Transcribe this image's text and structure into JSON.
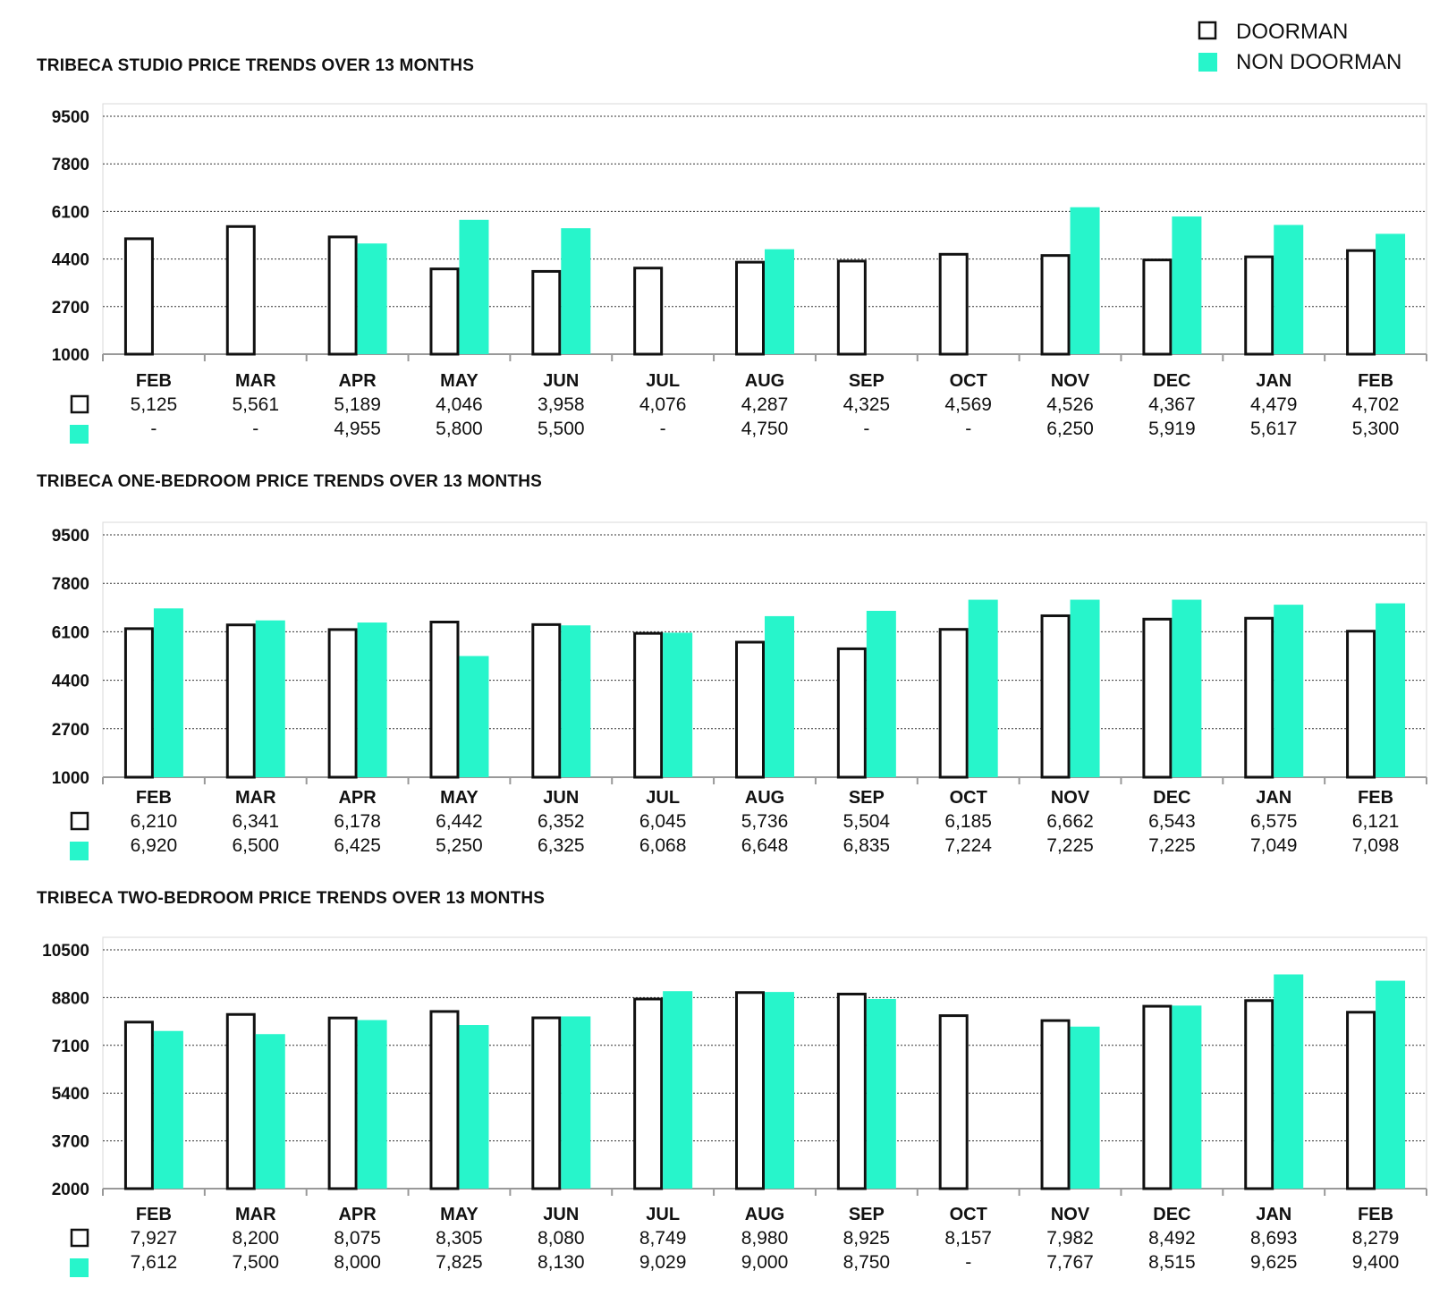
{
  "colors": {
    "doorman_stroke": "#111111",
    "non_doorman_fill": "#27f5cb"
  },
  "legend": {
    "doorman": "DOORMAN",
    "non_doorman": "NON DOORMAN"
  },
  "chart_data": [
    {
      "type": "bar",
      "title": "TRIBECA STUDIO PRICE TRENDS OVER 13 MONTHS",
      "categories": [
        "FEB",
        "MAR",
        "APR",
        "MAY",
        "JUN",
        "JUL",
        "AUG",
        "SEP",
        "OCT",
        "NOV",
        "DEC",
        "JAN",
        "FEB"
      ],
      "yticks": [
        "9500",
        "7800",
        "6100",
        "4400",
        "2700",
        "1000"
      ],
      "ylim": [
        1000,
        9500
      ],
      "series": [
        {
          "name": "DOORMAN",
          "values": [
            5125,
            5561,
            5189,
            4046,
            3958,
            4076,
            4287,
            4325,
            4569,
            4526,
            4367,
            4479,
            4702
          ],
          "labels": [
            "5,125",
            "5,561",
            "5,189",
            "4,046",
            "3,958",
            "4,076",
            "4,287",
            "4,325",
            "4,569",
            "4,526",
            "4,367",
            "4,479",
            "4,702"
          ]
        },
        {
          "name": "NON DOORMAN",
          "values": [
            null,
            null,
            4955,
            5800,
            5500,
            null,
            4750,
            null,
            null,
            6250,
            5919,
            5617,
            5300
          ],
          "labels": [
            "-",
            "-",
            "4,955",
            "5,800",
            "5,500",
            "-",
            "4,750",
            "-",
            "-",
            "6,250",
            "5,919",
            "5,617",
            "5,300"
          ]
        }
      ]
    },
    {
      "type": "bar",
      "title": "TRIBECA ONE-BEDROOM PRICE TRENDS OVER 13 MONTHS",
      "categories": [
        "FEB",
        "MAR",
        "APR",
        "MAY",
        "JUN",
        "JUL",
        "AUG",
        "SEP",
        "OCT",
        "NOV",
        "DEC",
        "JAN",
        "FEB"
      ],
      "yticks": [
        "9500",
        "7800",
        "6100",
        "4400",
        "2700",
        "1000"
      ],
      "ylim": [
        1000,
        9500
      ],
      "series": [
        {
          "name": "DOORMAN",
          "values": [
            6210,
            6341,
            6178,
            6442,
            6352,
            6045,
            5736,
            5504,
            6185,
            6662,
            6543,
            6575,
            6121
          ],
          "labels": [
            "6,210",
            "6,341",
            "6,178",
            "6,442",
            "6,352",
            "6,045",
            "5,736",
            "5,504",
            "6,185",
            "6,662",
            "6,543",
            "6,575",
            "6,121"
          ]
        },
        {
          "name": "NON DOORMAN",
          "values": [
            6920,
            6500,
            6425,
            5250,
            6325,
            6068,
            6648,
            6835,
            7224,
            7225,
            7225,
            7049,
            7098
          ],
          "labels": [
            "6,920",
            "6,500",
            "6,425",
            "5,250",
            "6,325",
            "6,068",
            "6,648",
            "6,835",
            "7,224",
            "7,225",
            "7,225",
            "7,049",
            "7,098"
          ]
        }
      ]
    },
    {
      "type": "bar",
      "title": "TRIBECA TWO-BEDROOM PRICE TRENDS OVER 13 MONTHS",
      "categories": [
        "FEB",
        "MAR",
        "APR",
        "MAY",
        "JUN",
        "JUL",
        "AUG",
        "SEP",
        "OCT",
        "NOV",
        "DEC",
        "JAN",
        "FEB"
      ],
      "yticks": [
        "10500",
        "8800",
        "7100",
        "5400",
        "3700",
        "2000"
      ],
      "ylim": [
        2000,
        10500
      ],
      "series": [
        {
          "name": "DOORMAN",
          "values": [
            7927,
            8200,
            8075,
            8305,
            8080,
            8749,
            8980,
            8925,
            8157,
            7982,
            8492,
            8693,
            8279
          ],
          "labels": [
            "7,927",
            "8,200",
            "8,075",
            "8,305",
            "8,080",
            "8,749",
            "8,980",
            "8,925",
            "8,157",
            "7,982",
            "8,492",
            "8,693",
            "8,279"
          ]
        },
        {
          "name": "NON DOORMAN",
          "values": [
            7612,
            7500,
            8000,
            7825,
            8130,
            9029,
            9000,
            8750,
            null,
            7767,
            8515,
            9625,
            9400
          ],
          "labels": [
            "7,612",
            "7,500",
            "8,000",
            "7,825",
            "8,130",
            "9,029",
            "9,000",
            "8,750",
            "-",
            "7,767",
            "8,515",
            "9,625",
            "9,400"
          ]
        }
      ]
    }
  ]
}
